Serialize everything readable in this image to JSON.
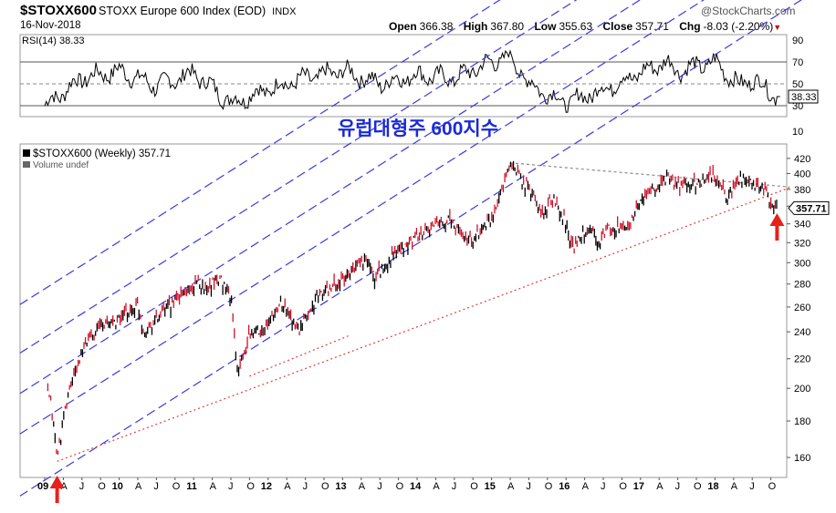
{
  "header": {
    "symbol": "$STOXX600",
    "name": "STOXX Europe 600 Index (EOD)",
    "exchange": "INDX",
    "date": "16-Nov-2018",
    "logo": "@StockCharts.com",
    "open_label": "Open",
    "open": "366.38",
    "high_label": "High",
    "high": "367.80",
    "low_label": "Low",
    "low": "355.63",
    "close_label": "Close",
    "close": "357.71",
    "chg_label": "Chg",
    "chg": "-8.03 (-2.20%)"
  },
  "annotation_kr": "유럽대형주 600지수",
  "colors": {
    "channel": "#3a3ae0",
    "trend_dot": "#e04040",
    "resistance": "#8a8a8a",
    "up_bar": "#000000",
    "down_bar": "#d0102a",
    "arrow": "#e8201a",
    "rsi_line": "#000000"
  },
  "chart_data": [
    {
      "type": "line",
      "title": "RSI(14) 38.33",
      "indicator": "RSI(14)",
      "last": 38.33,
      "ylim": [
        20,
        95
      ],
      "ticks": [
        90,
        70,
        50,
        30,
        10
      ],
      "reference_lines": [
        70,
        50,
        30
      ],
      "x_dates": [
        "2009-01",
        "2009-07",
        "2010-01",
        "2010-07",
        "2011-01",
        "2011-07",
        "2012-01",
        "2012-07",
        "2013-01",
        "2013-07",
        "2014-01",
        "2014-07",
        "2015-01",
        "2015-04",
        "2015-07",
        "2016-01",
        "2016-07",
        "2017-01",
        "2017-05",
        "2017-07",
        "2018-01",
        "2018-05",
        "2018-07",
        "2018-11"
      ],
      "values": [
        30,
        55,
        62,
        48,
        60,
        33,
        45,
        55,
        62,
        50,
        58,
        55,
        70,
        76,
        50,
        32,
        45,
        60,
        70,
        62,
        70,
        48,
        55,
        38.33
      ]
    },
    {
      "type": "line",
      "title": "$STOXX600 (Weekly) 357.71",
      "volume_label": "Volume undef",
      "scale": "log",
      "last": 357.71,
      "ylim": [
        150,
        440
      ],
      "y_ticks": [
        160,
        180,
        200,
        220,
        240,
        260,
        280,
        300,
        320,
        340,
        360,
        380,
        400,
        420
      ],
      "x_ticks": [
        "09",
        "A",
        "J",
        "O",
        "10",
        "A",
        "J",
        "O",
        "11",
        "A",
        "J",
        "O",
        "12",
        "A",
        "J",
        "O",
        "13",
        "A",
        "J",
        "O",
        "14",
        "A",
        "J",
        "O",
        "15",
        "A",
        "J",
        "O",
        "16",
        "A",
        "J",
        "O",
        "17",
        "A",
        "J",
        "O",
        "18",
        "A",
        "J",
        "O"
      ],
      "series": [
        {
          "x": [
            "2009-01",
            "2009-02",
            "2009-03",
            "2009-05",
            "2009-08",
            "2009-10",
            "2010-01",
            "2010-04",
            "2010-05",
            "2010-07",
            "2010-10",
            "2011-02",
            "2011-03",
            "2011-05",
            "2011-07",
            "2011-08",
            "2011-09",
            "2011-10",
            "2012-01",
            "2012-03",
            "2012-06",
            "2012-09",
            "2012-12",
            "2013-02",
            "2013-05",
            "2013-06",
            "2013-09",
            "2013-12",
            "2014-03",
            "2014-06",
            "2014-08",
            "2014-10",
            "2014-12",
            "2015-01",
            "2015-04",
            "2015-06",
            "2015-08",
            "2015-09",
            "2015-11",
            "2016-01",
            "2016-02",
            "2016-05",
            "2016-06",
            "2016-08",
            "2016-11",
            "2017-01",
            "2017-03",
            "2017-05",
            "2017-07",
            "2017-09",
            "2017-11",
            "2018-01",
            "2018-03",
            "2018-05",
            "2018-07",
            "2018-09",
            "2018-10",
            "2018-11"
          ],
          "values": [
            205,
            190,
            160,
            200,
            235,
            245,
            250,
            262,
            240,
            250,
            265,
            282,
            275,
            287,
            270,
            215,
            220,
            238,
            245,
            265,
            240,
            270,
            278,
            290,
            305,
            285,
            305,
            320,
            335,
            345,
            330,
            320,
            340,
            345,
            410,
            390,
            370,
            350,
            370,
            340,
            315,
            340,
            320,
            335,
            335,
            365,
            380,
            395,
            383,
            385,
            390,
            397,
            370,
            395,
            385,
            380,
            360,
            357.71
          ]
        }
      ],
      "annotations": [
        "arrow at 2009 low",
        "arrow at 2018 latest"
      ]
    }
  ]
}
